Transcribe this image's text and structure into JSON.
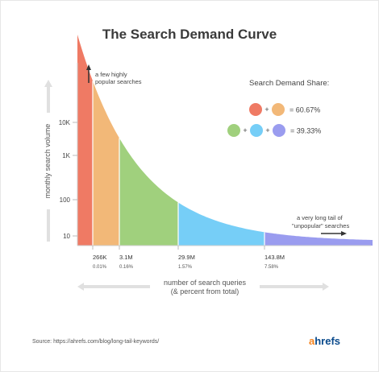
{
  "chart_data": {
    "type": "area",
    "title": "The Search Demand Curve",
    "ylabel": "monthly search volume",
    "xlabel_line1": "number of search queries",
    "xlabel_line2": "(& percent from total)",
    "y_ticks": [
      "10K",
      "1K",
      "100",
      "10"
    ],
    "y_log": true,
    "segments": [
      {
        "color": "#ef7a64",
        "end_label": "266K",
        "end_percent": "0.01%"
      },
      {
        "color": "#f2b878",
        "end_label": "3.1M",
        "end_percent": "0.16%"
      },
      {
        "color": "#a0d07d",
        "end_label": "29.9M",
        "end_percent": "1.57%"
      },
      {
        "color": "#76cef7",
        "end_label": "143.8M",
        "end_percent": "7.58%"
      },
      {
        "color": "#9a9cef",
        "end_label": "",
        "end_percent": ""
      }
    ],
    "annotations": {
      "top_line1": "a few highly",
      "top_line2": "popular searches",
      "tail_line1": "a very long tail of",
      "tail_line2": "\"unpopular\" searches"
    },
    "legend": {
      "title": "Search Demand Share:",
      "row1": {
        "colors": [
          "#ef7a64",
          "#f2b878"
        ],
        "value": "= 60.67%"
      },
      "row2": {
        "colors": [
          "#a0d07d",
          "#76cef7",
          "#9a9cef"
        ],
        "value": "= 39.33%"
      },
      "plus": "+"
    }
  },
  "footer": {
    "source": "Source:   https://ahrefs.com/blog/long-tail-keywords/",
    "logo_a": "a",
    "logo_rest": "hrefs"
  }
}
